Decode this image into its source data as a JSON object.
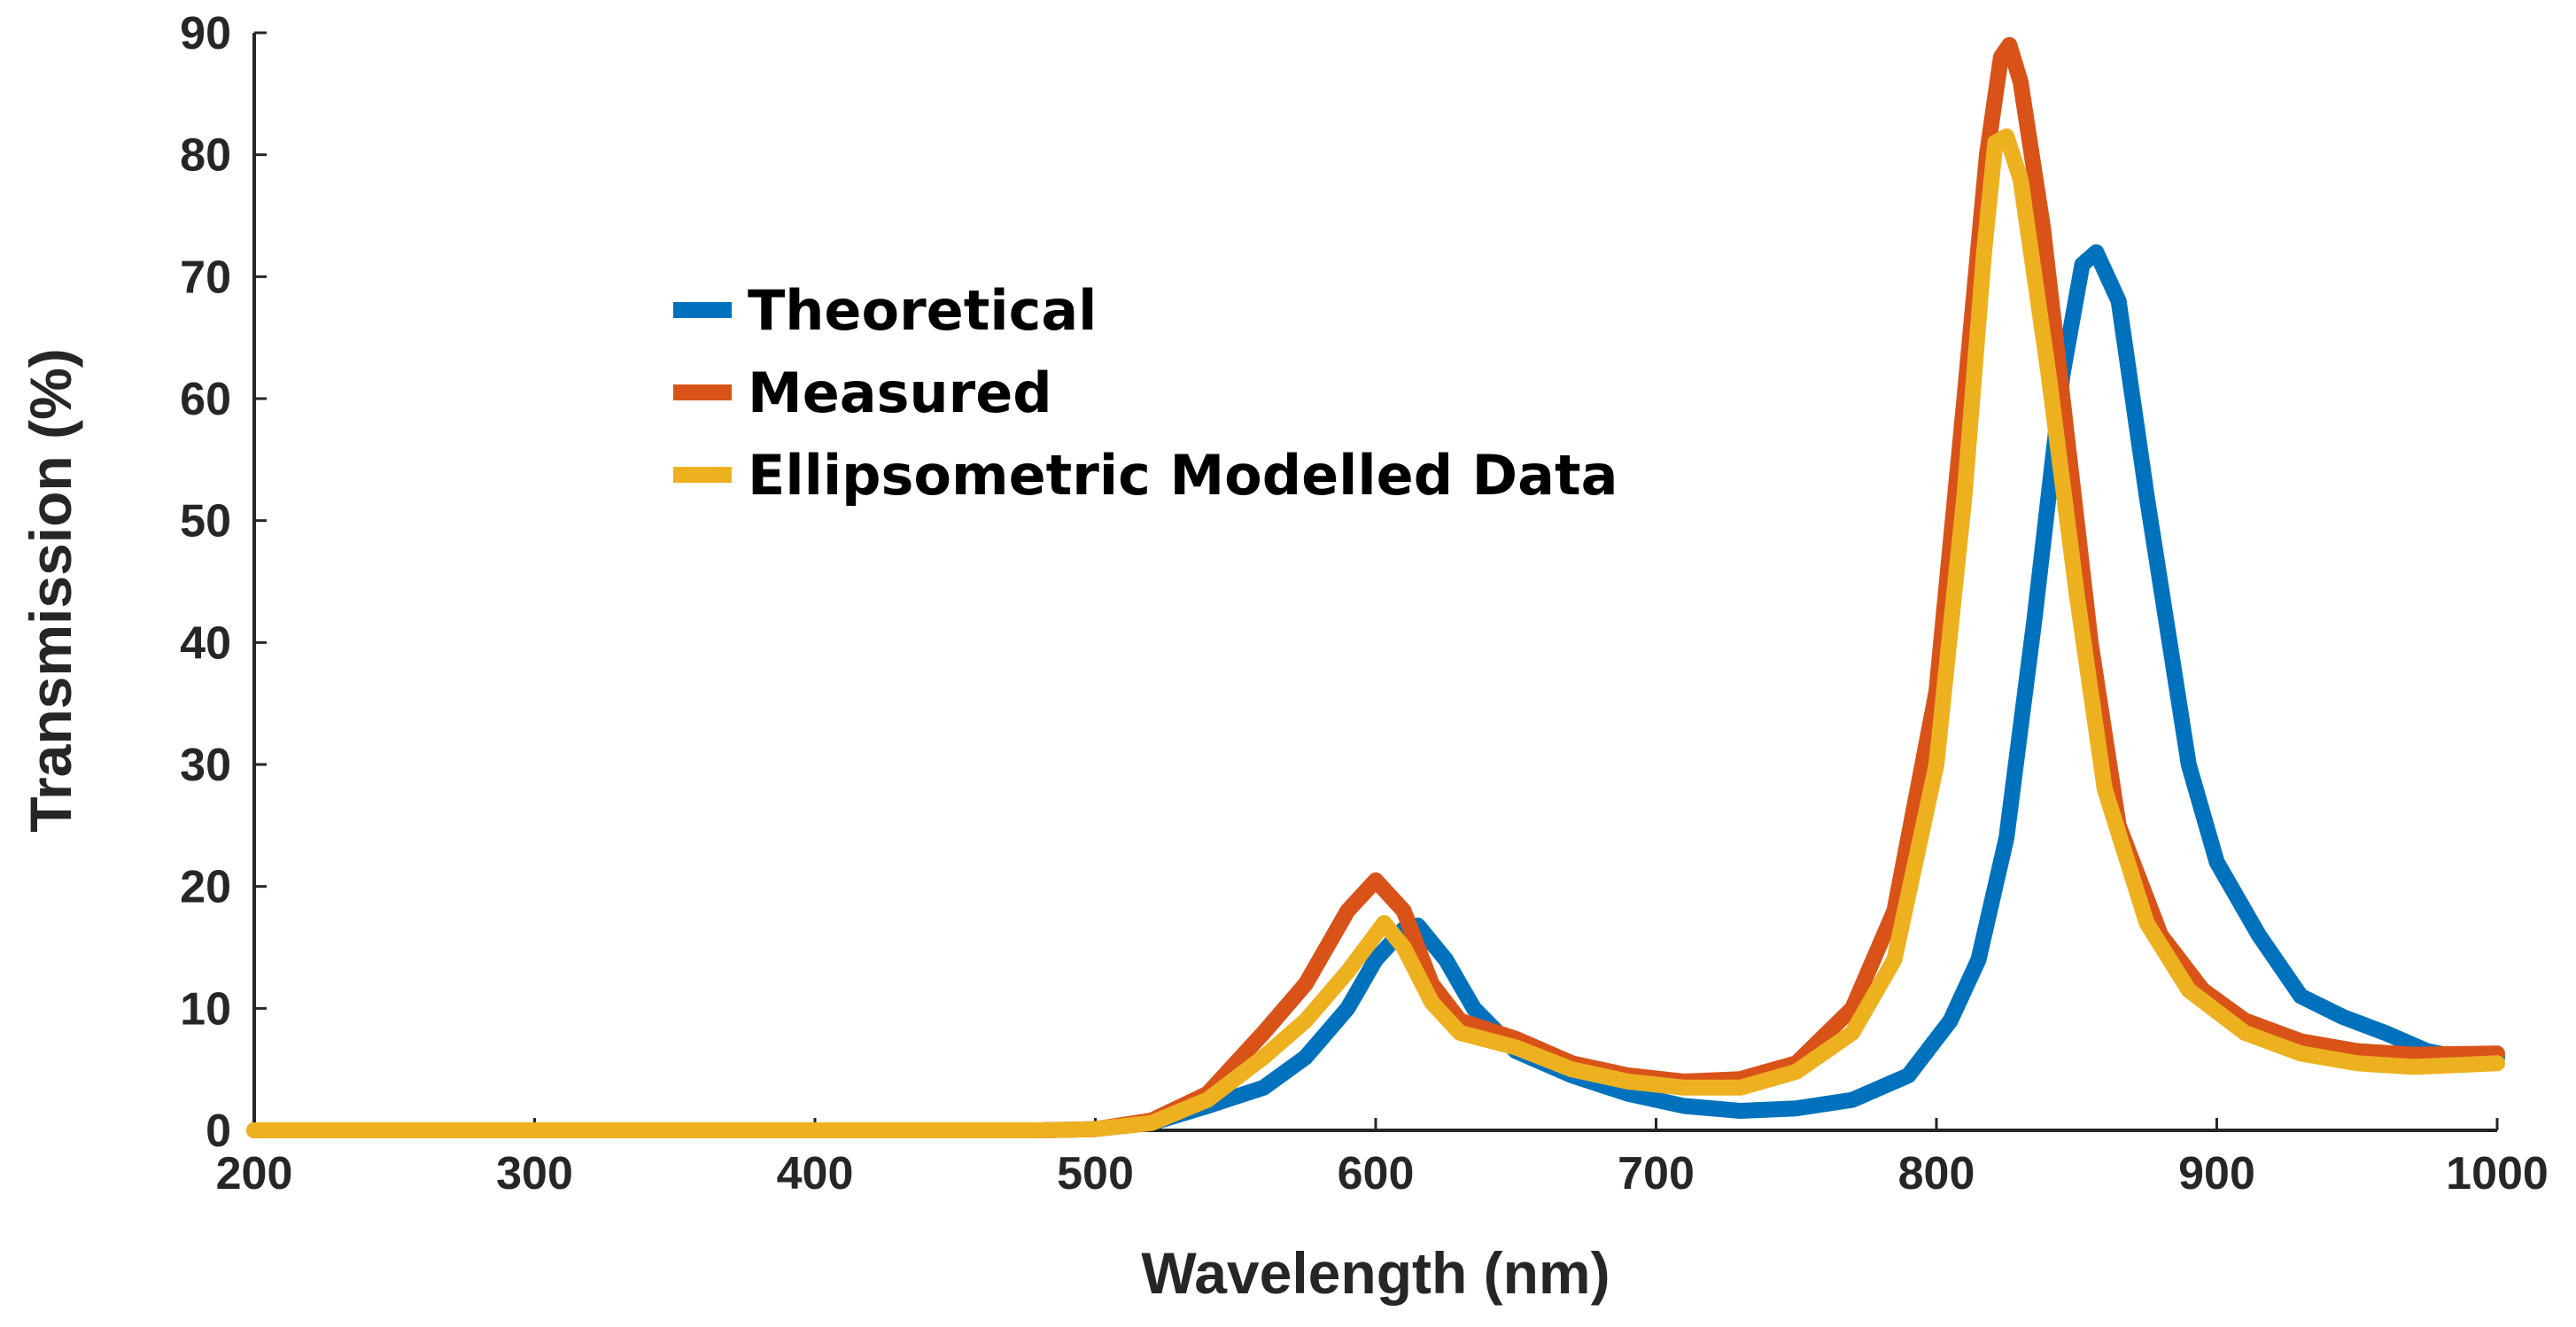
{
  "chart_data": {
    "type": "line",
    "title": "",
    "xlabel": "Wavelength (nm)",
    "ylabel": "Transmission (%)",
    "xlim": [
      200,
      1000
    ],
    "ylim": [
      0,
      90
    ],
    "xticks": [
      200,
      300,
      400,
      500,
      600,
      700,
      800,
      900,
      1000
    ],
    "yticks": [
      0,
      10,
      20,
      30,
      40,
      50,
      60,
      70,
      80,
      90
    ],
    "grid": false,
    "legend_position": "upper-left-center",
    "series": [
      {
        "name": "Theoretical",
        "color": "#0072BD",
        "points": [
          [
            200,
            0
          ],
          [
            300,
            0
          ],
          [
            400,
            0
          ],
          [
            480,
            0
          ],
          [
            500,
            0.1
          ],
          [
            520,
            0.6
          ],
          [
            540,
            2
          ],
          [
            560,
            3.5
          ],
          [
            575,
            6
          ],
          [
            590,
            10
          ],
          [
            600,
            14
          ],
          [
            610,
            16.5
          ],
          [
            615,
            16.8
          ],
          [
            625,
            14
          ],
          [
            635,
            10
          ],
          [
            650,
            6.5
          ],
          [
            670,
            4.5
          ],
          [
            690,
            3
          ],
          [
            710,
            2
          ],
          [
            730,
            1.6
          ],
          [
            750,
            1.8
          ],
          [
            770,
            2.5
          ],
          [
            790,
            4.5
          ],
          [
            805,
            9
          ],
          [
            815,
            14
          ],
          [
            825,
            24
          ],
          [
            835,
            42
          ],
          [
            845,
            62
          ],
          [
            852,
            71
          ],
          [
            857,
            72
          ],
          [
            865,
            68
          ],
          [
            875,
            52
          ],
          [
            890,
            30
          ],
          [
            900,
            22
          ],
          [
            915,
            16
          ],
          [
            930,
            11
          ],
          [
            945,
            9.3
          ],
          [
            960,
            8
          ],
          [
            975,
            6.5
          ],
          [
            990,
            5.8
          ],
          [
            1000,
            6
          ]
        ]
      },
      {
        "name": "Measured",
        "color": "#D95319",
        "points": [
          [
            200,
            0
          ],
          [
            300,
            0
          ],
          [
            400,
            0
          ],
          [
            480,
            0
          ],
          [
            500,
            0.1
          ],
          [
            520,
            0.8
          ],
          [
            540,
            3
          ],
          [
            560,
            8
          ],
          [
            575,
            12
          ],
          [
            590,
            18
          ],
          [
            600,
            20.5
          ],
          [
            610,
            18
          ],
          [
            620,
            12
          ],
          [
            630,
            9
          ],
          [
            650,
            7.5
          ],
          [
            670,
            5.5
          ],
          [
            690,
            4.5
          ],
          [
            710,
            4
          ],
          [
            730,
            4.2
          ],
          [
            750,
            5.5
          ],
          [
            770,
            10
          ],
          [
            785,
            18
          ],
          [
            800,
            36
          ],
          [
            810,
            60
          ],
          [
            818,
            80
          ],
          [
            823,
            88
          ],
          [
            826,
            89
          ],
          [
            830,
            86
          ],
          [
            838,
            74
          ],
          [
            845,
            60
          ],
          [
            855,
            40
          ],
          [
            865,
            25
          ],
          [
            880,
            16
          ],
          [
            895,
            11.5
          ],
          [
            910,
            9
          ],
          [
            930,
            7.3
          ],
          [
            950,
            6.5
          ],
          [
            970,
            6.2
          ],
          [
            1000,
            6.3
          ]
        ]
      },
      {
        "name": "Ellipsometric Modelled Data",
        "color": "#EDB120",
        "points": [
          [
            200,
            0
          ],
          [
            300,
            0
          ],
          [
            400,
            0
          ],
          [
            480,
            0
          ],
          [
            500,
            0.1
          ],
          [
            520,
            0.6
          ],
          [
            540,
            2.5
          ],
          [
            560,
            6
          ],
          [
            575,
            9
          ],
          [
            590,
            13
          ],
          [
            603,
            17
          ],
          [
            610,
            15
          ],
          [
            620,
            10.5
          ],
          [
            630,
            8
          ],
          [
            650,
            6.8
          ],
          [
            670,
            5
          ],
          [
            690,
            4
          ],
          [
            710,
            3.5
          ],
          [
            730,
            3.5
          ],
          [
            750,
            4.8
          ],
          [
            770,
            8
          ],
          [
            785,
            14
          ],
          [
            800,
            30
          ],
          [
            810,
            52
          ],
          [
            817,
            72
          ],
          [
            821,
            81
          ],
          [
            825,
            81.5
          ],
          [
            830,
            78
          ],
          [
            840,
            62
          ],
          [
            850,
            44
          ],
          [
            860,
            28
          ],
          [
            875,
            17
          ],
          [
            890,
            11.5
          ],
          [
            910,
            8
          ],
          [
            930,
            6.3
          ],
          [
            950,
            5.5
          ],
          [
            970,
            5.2
          ],
          [
            1000,
            5.5
          ]
        ]
      }
    ]
  }
}
